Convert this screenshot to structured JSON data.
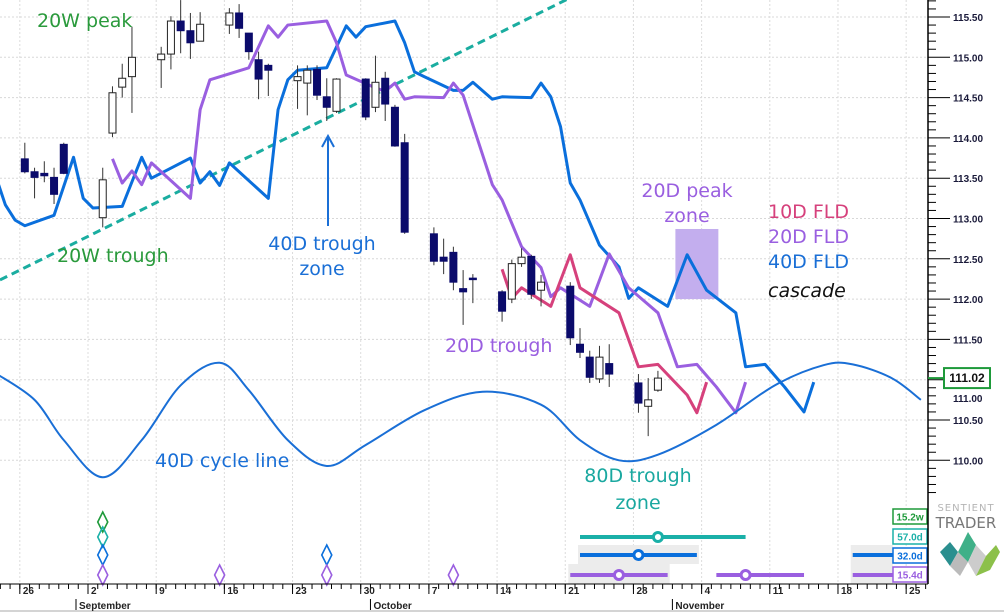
{
  "chart_data": {
    "type": "candlestick",
    "price_axis": {
      "ticks": [
        "110.00",
        "110.50",
        "111.00",
        "111.50",
        "112.00",
        "112.50",
        "113.00",
        "113.50",
        "114.00",
        "114.50",
        "115.00",
        "115.50"
      ],
      "range": [
        109.6,
        115.7
      ],
      "side": "right",
      "grid": true
    },
    "last_price": {
      "label": "111.02",
      "value": 111.02,
      "color": "#1e9a3a"
    },
    "date_axis": {
      "day_labels": [
        {
          "date": "Aug 26",
          "label": "26"
        },
        {
          "date": "Sep 2",
          "label": "2"
        },
        {
          "date": "Sep 9",
          "label": "9"
        },
        {
          "date": "Sep 16",
          "label": "16"
        },
        {
          "date": "Sep 23",
          "label": "23"
        },
        {
          "date": "Sep 30",
          "label": "30"
        },
        {
          "date": "Oct 7",
          "label": "7"
        },
        {
          "date": "Oct 14",
          "label": "14"
        },
        {
          "date": "Oct 21",
          "label": "21"
        },
        {
          "date": "Oct 28",
          "label": "28"
        },
        {
          "date": "Nov 4",
          "label": "4"
        },
        {
          "date": "Nov 11",
          "label": "11"
        },
        {
          "date": "Nov 18",
          "label": "18"
        },
        {
          "date": "Nov 25",
          "label": "25"
        }
      ],
      "month_labels": [
        {
          "date": "Sep 2",
          "label": "September"
        },
        {
          "date": "Oct 1",
          "label": "October"
        },
        {
          "date": "Nov 1",
          "label": "November"
        }
      ],
      "grid": true
    },
    "candles": [
      {
        "date": "Aug 26",
        "o": 113.74,
        "h": 113.94,
        "l": 113.56,
        "c": 113.58
      },
      {
        "date": "Aug 27",
        "o": 113.58,
        "h": 113.63,
        "l": 113.25,
        "c": 113.51
      },
      {
        "date": "Aug 28",
        "o": 113.56,
        "h": 113.71,
        "l": 113.45,
        "c": 113.53
      },
      {
        "date": "Aug 29",
        "o": 113.51,
        "h": 113.63,
        "l": 113.18,
        "c": 113.3
      },
      {
        "date": "Aug 30",
        "o": 113.92,
        "h": 113.94,
        "l": 113.55,
        "c": 113.56
      },
      {
        "date": "Sep 3",
        "o": 113.01,
        "h": 113.63,
        "l": 112.89,
        "c": 113.48
      },
      {
        "date": "Sep 4",
        "o": 114.06,
        "h": 114.64,
        "l": 114.01,
        "c": 114.56
      },
      {
        "date": "Sep 5",
        "o": 114.63,
        "h": 114.92,
        "l": 114.5,
        "c": 114.74
      },
      {
        "date": "Sep 6",
        "o": 114.76,
        "h": 115.38,
        "l": 114.31,
        "c": 115.0
      },
      {
        "date": "Sep 9",
        "o": 114.97,
        "h": 115.13,
        "l": 114.62,
        "c": 115.04
      },
      {
        "date": "Sep 10",
        "o": 115.04,
        "h": 115.51,
        "l": 114.85,
        "c": 115.45
      },
      {
        "date": "Sep 11",
        "o": 115.45,
        "h": 115.71,
        "l": 115.05,
        "c": 115.33
      },
      {
        "date": "Sep 12",
        "o": 115.33,
        "h": 115.55,
        "l": 114.98,
        "c": 115.18
      },
      {
        "date": "Sep 13",
        "o": 115.2,
        "h": 115.56,
        "l": 115.2,
        "c": 115.41
      },
      {
        "date": "Sep 16",
        "o": 115.4,
        "h": 115.61,
        "l": 115.29,
        "c": 115.55
      },
      {
        "date": "Sep 17",
        "o": 115.55,
        "h": 115.66,
        "l": 115.24,
        "c": 115.36
      },
      {
        "date": "Sep 18",
        "o": 115.3,
        "h": 115.3,
        "l": 114.97,
        "c": 115.07
      },
      {
        "date": "Sep 19",
        "o": 114.97,
        "h": 115.07,
        "l": 114.48,
        "c": 114.73
      },
      {
        "date": "Sep 20",
        "o": 114.9,
        "h": 114.92,
        "l": 114.52,
        "c": 114.84
      },
      {
        "date": "Sep 23",
        "o": 114.71,
        "h": 114.9,
        "l": 114.36,
        "c": 114.76
      },
      {
        "date": "Sep 24",
        "o": 114.68,
        "h": 114.9,
        "l": 114.28,
        "c": 114.84
      },
      {
        "date": "Sep 25",
        "o": 114.85,
        "h": 114.9,
        "l": 114.47,
        "c": 114.53
      },
      {
        "date": "Sep 26",
        "o": 114.51,
        "h": 114.74,
        "l": 114.21,
        "c": 114.38
      },
      {
        "date": "Sep 27",
        "o": 114.33,
        "h": 114.74,
        "l": 114.31,
        "c": 114.73
      },
      {
        "date": "Sep 30",
        "o": 114.73,
        "h": 114.74,
        "l": 114.22,
        "c": 114.26
      },
      {
        "date": "Oct 1",
        "o": 114.38,
        "h": 115.02,
        "l": 114.32,
        "c": 114.69
      },
      {
        "date": "Oct 2",
        "o": 114.74,
        "h": 114.82,
        "l": 114.21,
        "c": 114.42
      },
      {
        "date": "Oct 3",
        "o": 114.38,
        "h": 114.41,
        "l": 113.89,
        "c": 113.9
      },
      {
        "date": "Oct 4",
        "o": 113.94,
        "h": 114.05,
        "l": 112.81,
        "c": 112.83
      },
      {
        "date": "Oct 7",
        "o": 112.81,
        "h": 112.89,
        "l": 112.42,
        "c": 112.47
      },
      {
        "date": "Oct 8",
        "o": 112.52,
        "h": 112.75,
        "l": 112.31,
        "c": 112.47
      },
      {
        "date": "Oct 9",
        "o": 112.58,
        "h": 112.65,
        "l": 112.11,
        "c": 112.21
      },
      {
        "date": "Oct 10",
        "o": 112.13,
        "h": 112.36,
        "l": 111.68,
        "c": 112.09
      },
      {
        "date": "Oct 11",
        "o": 112.26,
        "h": 112.31,
        "l": 111.95,
        "c": 112.25
      },
      {
        "date": "Oct 14",
        "o": 112.09,
        "h": 112.11,
        "l": 111.72,
        "c": 111.85
      },
      {
        "date": "Oct 15",
        "o": 112.0,
        "h": 112.49,
        "l": 111.95,
        "c": 112.44
      },
      {
        "date": "Oct 16",
        "o": 112.44,
        "h": 112.63,
        "l": 112.4,
        "c": 112.52
      },
      {
        "date": "Oct 17",
        "o": 112.53,
        "h": 112.55,
        "l": 112.0,
        "c": 112.06
      },
      {
        "date": "Oct 18",
        "o": 112.11,
        "h": 112.3,
        "l": 111.91,
        "c": 112.21
      },
      {
        "date": "Oct 21",
        "o": 112.16,
        "h": 112.21,
        "l": 111.43,
        "c": 111.52
      },
      {
        "date": "Oct 22",
        "o": 111.44,
        "h": 111.64,
        "l": 111.27,
        "c": 111.34
      },
      {
        "date": "Oct 23",
        "o": 111.28,
        "h": 111.36,
        "l": 110.96,
        "c": 111.03
      },
      {
        "date": "Oct 24",
        "o": 111.01,
        "h": 111.42,
        "l": 110.96,
        "c": 111.28
      },
      {
        "date": "Oct 25",
        "o": 111.2,
        "h": 111.44,
        "l": 110.91,
        "c": 111.07
      },
      {
        "date": "Oct 28",
        "o": 110.96,
        "h": 111.07,
        "l": 110.59,
        "c": 110.71
      },
      {
        "date": "Oct 29",
        "o": 110.67,
        "h": 111.02,
        "l": 110.3,
        "c": 110.75
      },
      {
        "date": "Oct 30",
        "o": 110.87,
        "h": 111.11,
        "l": 110.85,
        "c": 111.02
      }
    ],
    "series": [
      {
        "name": "40D FLD",
        "color": "#0a6fdc",
        "points": [
          [
            "Aug 23",
            113.53
          ],
          [
            "Aug 24",
            113.17
          ],
          [
            "Aug 25",
            112.98
          ],
          [
            "Aug 26",
            112.91
          ],
          [
            "Aug 29",
            113.04
          ],
          [
            "Aug 31",
            113.76
          ],
          [
            "Sep 1",
            113.25
          ],
          [
            "Sep 2",
            113.13
          ],
          [
            "Sep 5",
            113.15
          ],
          [
            "Sep 7",
            113.76
          ],
          [
            "Sep 8",
            113.5
          ],
          [
            "Sep 12",
            113.75
          ],
          [
            "Sep 13",
            113.44
          ],
          [
            "Sep 14",
            113.58
          ],
          [
            "Sep 15",
            113.41
          ],
          [
            "Sep 16",
            113.69
          ],
          [
            "Sep 20",
            113.25
          ],
          [
            "Sep 21",
            114.35
          ],
          [
            "Sep 22",
            114.72
          ],
          [
            "Sep 23",
            114.84
          ],
          [
            "Sep 26",
            114.87
          ],
          [
            "Sep 27",
            115.13
          ],
          [
            "Sep 28",
            115.39
          ],
          [
            "Sep 29",
            115.25
          ],
          [
            "Sep 30",
            115.38
          ],
          [
            "Oct 3",
            115.45
          ],
          [
            "Oct 4",
            115.18
          ],
          [
            "Oct 5",
            114.82
          ],
          [
            "Oct 6",
            114.76
          ],
          [
            "Oct 9",
            114.59
          ],
          [
            "Oct 10",
            114.59
          ],
          [
            "Oct 11",
            114.69
          ],
          [
            "Oct 13",
            114.48
          ],
          [
            "Oct 14",
            114.51
          ],
          [
            "Oct 17",
            114.5
          ],
          [
            "Oct 18",
            114.68
          ],
          [
            "Oct 19",
            114.51
          ],
          [
            "Oct 20",
            114.14
          ],
          [
            "Oct 21",
            113.44
          ],
          [
            "Oct 22",
            113.23
          ],
          [
            "Oct 24",
            112.67
          ],
          [
            "Oct 26",
            112.4
          ],
          [
            "Oct 27",
            112.01
          ],
          [
            "Oct 28",
            112.14
          ],
          [
            "Oct 31",
            111.91
          ],
          [
            "Nov 2",
            112.55
          ],
          [
            "Nov 4",
            112.11
          ],
          [
            "Nov 7",
            111.83
          ],
          [
            "Nov 8",
            111.16
          ],
          [
            "Nov 10",
            111.19
          ],
          [
            "Nov 12",
            110.91
          ],
          [
            "Nov 14",
            110.6
          ],
          [
            "Nov 15",
            110.97
          ]
        ]
      },
      {
        "name": "20D FLD",
        "color": "#9a5fe0",
        "points": [
          [
            "Sep 4",
            113.74
          ],
          [
            "Sep 5",
            113.44
          ],
          [
            "Sep 6",
            113.59
          ],
          [
            "Sep 7",
            113.42
          ],
          [
            "Sep 8",
            113.69
          ],
          [
            "Sep 12",
            113.25
          ],
          [
            "Sep 13",
            114.35
          ],
          [
            "Sep 14",
            114.72
          ],
          [
            "Sep 18",
            114.87
          ],
          [
            "Sep 20",
            115.39
          ],
          [
            "Sep 21",
            115.25
          ],
          [
            "Sep 22",
            115.4
          ],
          [
            "Sep 26",
            115.45
          ],
          [
            "Sep 27",
            115.18
          ],
          [
            "Sep 28",
            114.78
          ],
          [
            "Oct 1",
            114.62
          ],
          [
            "Oct 2",
            114.58
          ],
          [
            "Oct 3",
            114.68
          ],
          [
            "Oct 4",
            114.48
          ],
          [
            "Oct 5",
            114.51
          ],
          [
            "Oct 8",
            114.5
          ],
          [
            "Oct 9",
            114.68
          ],
          [
            "Oct 10",
            114.53
          ],
          [
            "Oct 11",
            114.16
          ],
          [
            "Oct 13",
            113.42
          ],
          [
            "Oct 14",
            113.23
          ],
          [
            "Oct 16",
            112.65
          ],
          [
            "Oct 18",
            112.39
          ],
          [
            "Oct 19",
            112.03
          ],
          [
            "Oct 20",
            112.14
          ],
          [
            "Oct 23",
            111.91
          ],
          [
            "Oct 25",
            112.56
          ],
          [
            "Oct 27",
            112.14
          ],
          [
            "Oct 30",
            111.83
          ],
          [
            "Nov 1",
            111.16
          ],
          [
            "Nov 3",
            111.19
          ],
          [
            "Nov 5",
            110.91
          ],
          [
            "Nov 7",
            110.59
          ],
          [
            "Nov 8",
            110.97
          ]
        ]
      },
      {
        "name": "10D FLD",
        "color": "#d6417c",
        "points": [
          [
            "Oct 14",
            112.37
          ],
          [
            "Oct 15",
            112.01
          ],
          [
            "Oct 16",
            112.14
          ],
          [
            "Oct 19",
            111.91
          ],
          [
            "Oct 21",
            112.55
          ],
          [
            "Oct 22",
            112.14
          ],
          [
            "Oct 26",
            111.83
          ],
          [
            "Oct 28",
            111.16
          ],
          [
            "Oct 30",
            111.19
          ],
          [
            "Nov 2",
            110.81
          ],
          [
            "Nov 3",
            110.59
          ],
          [
            "Nov 4",
            110.97
          ]
        ]
      },
      {
        "name": "40D cycle line",
        "color": "#1a6fd6",
        "points": [
          [
            "Aug 23",
            111.08
          ],
          [
            "Aug 27",
            110.75
          ],
          [
            "Aug 30",
            110.25
          ],
          [
            "Sep 3",
            109.79
          ],
          [
            "Sep 7",
            110.25
          ],
          [
            "Sep 11",
            110.93
          ],
          [
            "Sep 15",
            111.21
          ],
          [
            "Sep 18",
            110.87
          ],
          [
            "Sep 22",
            110.25
          ],
          [
            "Sep 26",
            109.93
          ],
          [
            "Sep 30",
            110.19
          ],
          [
            "Oct 6",
            110.62
          ],
          [
            "Oct 12",
            110.85
          ],
          [
            "Oct 18",
            110.69
          ],
          [
            "Oct 22",
            110.25
          ],
          [
            "Oct 26",
            110.0
          ],
          [
            "Oct 30",
            110.07
          ],
          [
            "Nov 5",
            110.44
          ],
          [
            "Nov 11",
            110.93
          ],
          [
            "Nov 16",
            111.18
          ],
          [
            "Nov 19",
            111.19
          ],
          [
            "Nov 23",
            111.02
          ],
          [
            "Nov 26",
            110.75
          ]
        ]
      }
    ],
    "trendline": {
      "color": "#1aada0",
      "style": "dashed",
      "from": [
        "Aug 26",
        112.39
      ],
      "to": [
        "Oct 14",
        115.32
      ]
    },
    "peak_zone": {
      "color": "#c3aeee",
      "from": "Nov 1",
      "to": "Nov 5",
      "top": 112.87,
      "bottom": 112.0
    },
    "annotations": [
      {
        "text": "20W peak",
        "color": "#2a9a3c"
      },
      {
        "text": "20W trough",
        "color": "#2a9a3c"
      },
      {
        "text": "40D trough",
        "color": "#1a6fd6"
      },
      {
        "text": "zone",
        "color": "#1a6fd6"
      },
      {
        "text": "20D trough",
        "color": "#9a5fe0"
      },
      {
        "text": "20D peak",
        "color": "#9a5fe0"
      },
      {
        "text": "zone",
        "color": "#9a5fe0"
      },
      {
        "text": "10D FLD",
        "color": "#d6417c"
      },
      {
        "text": "20D FLD",
        "color": "#9a5fe0"
      },
      {
        "text": "40D FLD",
        "color": "#1a6fd6"
      },
      {
        "text": "cascade",
        "color": "#111111"
      },
      {
        "text": "40D cycle line",
        "color": "#1a6fd6"
      },
      {
        "text": "80D trough",
        "color": "#1aa8a0"
      },
      {
        "text": "zone",
        "color": "#1aa8a0"
      }
    ],
    "cycles": [
      {
        "label": "15.2w",
        "color": "#1e9a3a",
        "diamonds": [
          "Sep 3"
        ],
        "bars": []
      },
      {
        "label": "57.0d",
        "color": "#1ab0a8",
        "diamonds": [
          "Sep 3"
        ],
        "bars": [
          {
            "from": "Oct 22",
            "to": "Nov 8",
            "mid": "Oct 30"
          }
        ]
      },
      {
        "label": "32.0d",
        "color": "#0a6fdc",
        "diamonds": [
          "Sep 3",
          "Sep 26"
        ],
        "bars": [
          {
            "from": "Oct 22",
            "to": "Nov 3",
            "mid": "Oct 28"
          },
          {
            "from": "Nov 19",
            "to": "Nov 25",
            "mid": null
          }
        ]
      },
      {
        "label": "15.4d",
        "color": "#9a5fe0",
        "diamonds": [
          "Sep 3",
          "Sep 15",
          "Sep 26",
          "Oct 9"
        ],
        "bars": [
          {
            "from": "Oct 21",
            "to": "Oct 31",
            "mid": "Oct 26"
          },
          {
            "from": "Nov 5",
            "to": "Nov 14",
            "mid": "Nov 8"
          },
          {
            "from": "Nov 19",
            "to": "Nov 25",
            "mid": null
          }
        ]
      }
    ]
  },
  "logo": {
    "line1": "SENTIENT",
    "line2": "TRADER"
  }
}
